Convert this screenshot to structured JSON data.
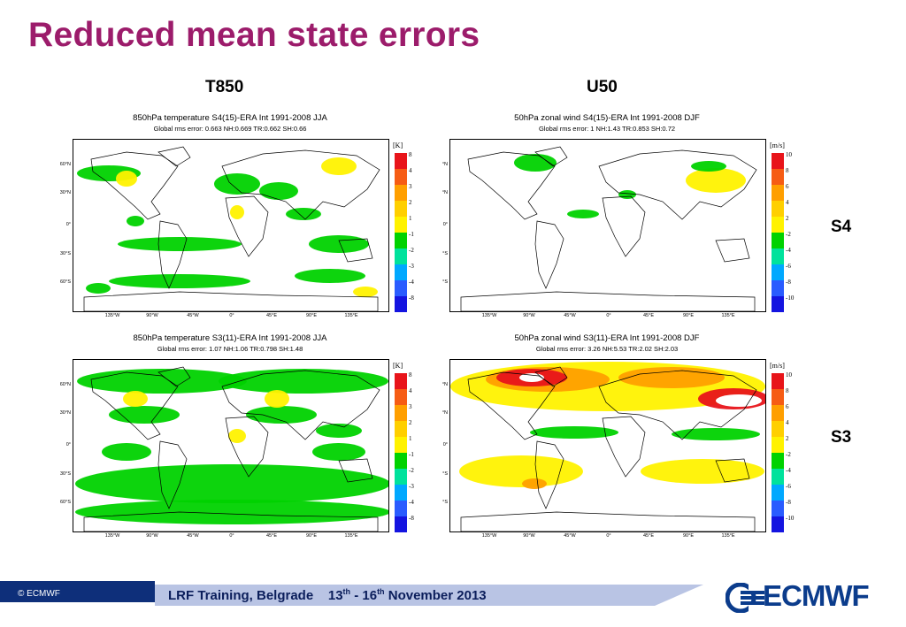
{
  "slide": {
    "title": "Reduced mean state errors",
    "col_heads": [
      "T850",
      "U50"
    ],
    "row_labels": [
      "S4",
      "S3"
    ]
  },
  "panels": [
    {
      "title": "850hPa temperature S4(15)-ERA Int  1991-2008 JJA",
      "subtitle": "Global rms error: 0.663 NH:0.669 TR:0.662 SH:0.66",
      "unit": "[K]",
      "ticks": [
        "8",
        "4",
        "3",
        "2",
        "1",
        "-1",
        "-2",
        "-3",
        "-4",
        "-8"
      ]
    },
    {
      "title": "50hPa zonal wind S4(15)-ERA Int  1991-2008 DJF",
      "subtitle": "Global rms error: 1 NH:1.43 TR:0.853 SH:0.72",
      "unit": "[m/s]",
      "ticks": [
        "10",
        "8",
        "6",
        "4",
        "2",
        "-2",
        "-4",
        "-6",
        "-8",
        "-10"
      ]
    },
    {
      "title": "850hPa temperature S3(11)-ERA Int  1991-2008 JJA",
      "subtitle": "Global rms error: 1.07 NH:1.06 TR:0.798 SH:1.48",
      "unit": "[K]",
      "ticks": [
        "8",
        "4",
        "3",
        "2",
        "1",
        "-1",
        "-2",
        "-3",
        "-4",
        "-8"
      ]
    },
    {
      "title": "50hPa zonal wind S3(11)-ERA Int  1991-2008 DJF",
      "subtitle": "Global rms error: 3.26 NH:5.53 TR:2.02 SH:2.03",
      "unit": "[m/s]",
      "ticks": [
        "10",
        "8",
        "6",
        "4",
        "2",
        "-2",
        "-4",
        "-6",
        "-8",
        "-10"
      ]
    }
  ],
  "lat_labels": [
    "60°N",
    "30°N",
    "0°",
    "30°S",
    "60°S"
  ],
  "lat_labels_right": [
    "°N",
    "°N",
    "0°",
    "°S",
    "°S"
  ],
  "lon_labels": [
    "135°W",
    "90°W",
    "45°W",
    "0°",
    "45°E",
    "90°E",
    "135°E"
  ],
  "colorbar_colors": [
    "#e8141a",
    "#f65c14",
    "#ff9f00",
    "#ffcf00",
    "#fff200",
    "#00d200",
    "#00e29c",
    "#00a8ff",
    "#2a5cff",
    "#1414e0"
  ],
  "footer": {
    "copyright": "© ECMWF",
    "event": "LRF Training, Belgrade",
    "date_start": "13",
    "sup1": "th",
    "date_mid": " - 16",
    "sup2": "th",
    "date_end": " November 2013",
    "logo": "ECMWF"
  },
  "colors": {
    "title": "#9c1c6b",
    "footer_bar": "#0e2f7a",
    "land_line": "#000000",
    "neg": "#00d200",
    "pos": "#fff200"
  }
}
